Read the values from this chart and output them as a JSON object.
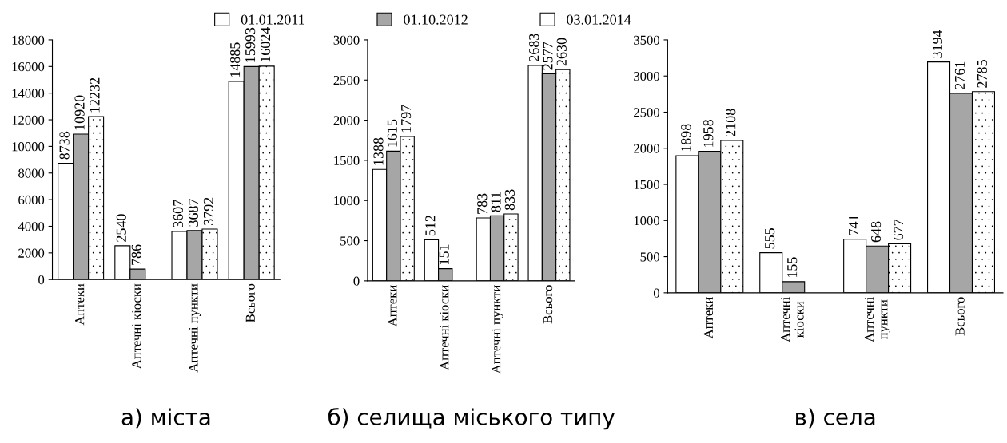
{
  "chart_data": [
    {
      "type": "bar",
      "title": "а) міста",
      "categories": [
        "Аптеки",
        "Аптечні кіоски",
        "Аптечні пункти",
        "Всього"
      ],
      "ylim": [
        0,
        18000
      ],
      "yticks": [
        0,
        2000,
        4000,
        6000,
        8000,
        10000,
        12000,
        14000,
        16000,
        18000
      ],
      "data_labels": true,
      "legend": "top",
      "grid": false,
      "series": [
        {
          "name": "01.01.2011",
          "color": "#ffffff",
          "values": [
            8738,
            2540,
            3607,
            14885
          ]
        },
        {
          "name": "01.10.2012",
          "color": "#a6a6a6",
          "values": [
            10920,
            786,
            3687,
            15993
          ]
        },
        {
          "name": "03.01.2014",
          "color": "#ffffff",
          "values": [
            12232,
            null,
            3792,
            16024
          ]
        }
      ]
    },
    {
      "type": "bar",
      "title": "б) селища міського типу",
      "categories": [
        "Аптеки",
        "Аптечні кіоски",
        "Аптечні пункти",
        "Всього"
      ],
      "ylim": [
        0,
        3000
      ],
      "yticks": [
        0,
        500,
        1000,
        1500,
        2000,
        2500,
        3000
      ],
      "data_labels": true,
      "grid": false,
      "series": [
        {
          "color": "#ffffff",
          "values": [
            1388,
            512,
            783,
            2683
          ]
        },
        {
          "color": "#a6a6a6",
          "values": [
            1615,
            151,
            811,
            2577
          ]
        },
        {
          "color": "#ffffff",
          "values": [
            1797,
            null,
            833,
            2630
          ]
        }
      ]
    },
    {
      "type": "bar",
      "title": "в) села",
      "categories": [
        "Аптеки",
        "Аптечні\nкіоски",
        "Аптечні\nпункти",
        "Всього"
      ],
      "ylim": [
        0,
        3500
      ],
      "yticks": [
        0,
        500,
        1000,
        1500,
        2000,
        2500,
        3000,
        3500
      ],
      "data_labels": true,
      "grid": false,
      "series": [
        {
          "color": "#ffffff",
          "values": [
            1898,
            555,
            741,
            3194
          ]
        },
        {
          "color": "#a6a6a6",
          "values": [
            1958,
            155,
            648,
            2761
          ]
        },
        {
          "color": "#ffffff",
          "values": [
            2108,
            null,
            677,
            2785
          ]
        }
      ]
    }
  ]
}
